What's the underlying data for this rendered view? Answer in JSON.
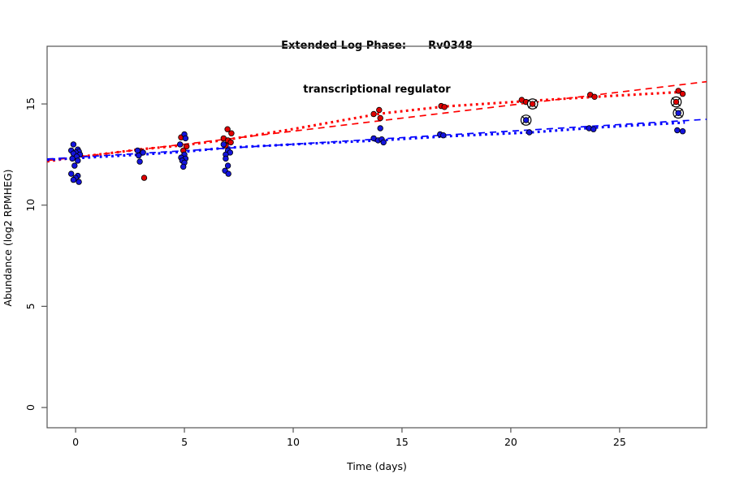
{
  "figure": {
    "title_line1": "Extended Log Phase:      Rv0348",
    "title_line2": "transcriptional regulator",
    "x_axis_title": "Time  (days)",
    "y_axis_title": "Abundance  (log2 RPMHEG)"
  },
  "chart_data": {
    "type": "scatter",
    "title": "Extended Log Phase: Rv0348 transcriptional regulator",
    "xlabel": "Time (days)",
    "ylabel": "Abundance (log2 RPMHEG)",
    "xlim": [
      -1.31,
      29.0
    ],
    "ylim": [
      -1.0,
      17.85
    ],
    "x_ticks": [
      0,
      5,
      10,
      15,
      20,
      25
    ],
    "y_ticks": [
      0,
      5,
      10,
      15
    ],
    "grid": false,
    "legend": "none",
    "colors": {
      "red_points": "#e00000",
      "blue_points": "#1414dd",
      "red_line": "#ff0000",
      "blue_line": "#0000ff",
      "ring": "#000000",
      "axis": "#555555"
    },
    "series": [
      {
        "name": "red-condition-points",
        "type": "scatter",
        "color_key": "red_points",
        "points": [
          [
            3.0,
            12.64
          ],
          [
            3.15,
            11.35
          ],
          [
            4.85,
            13.35
          ],
          [
            5.1,
            12.9
          ],
          [
            4.95,
            12.7
          ],
          [
            6.98,
            13.75
          ],
          [
            7.16,
            13.55
          ],
          [
            6.8,
            13.3
          ],
          [
            7.0,
            13.2
          ],
          [
            7.13,
            13.1
          ],
          [
            6.9,
            12.95
          ],
          [
            13.95,
            14.7
          ],
          [
            13.7,
            14.5
          ],
          [
            14.0,
            14.3
          ],
          [
            16.8,
            14.9
          ],
          [
            16.95,
            14.85
          ],
          [
            20.5,
            15.2
          ],
          [
            20.7,
            15.1
          ],
          [
            23.65,
            15.45
          ],
          [
            23.85,
            15.35
          ],
          [
            27.7,
            15.65
          ],
          [
            27.9,
            15.5
          ]
        ]
      },
      {
        "name": "blue-condition-points",
        "type": "scatter",
        "color_key": "blue_points",
        "points": [
          [
            -0.1,
            13.0
          ],
          [
            0.1,
            12.75
          ],
          [
            -0.2,
            12.7
          ],
          [
            0.15,
            12.65
          ],
          [
            0.0,
            12.6
          ],
          [
            -0.1,
            12.55
          ],
          [
            0.2,
            12.5
          ],
          [
            0.05,
            12.4
          ],
          [
            -0.15,
            12.3
          ],
          [
            0.1,
            12.2
          ],
          [
            -0.05,
            11.95
          ],
          [
            -0.2,
            11.55
          ],
          [
            0.1,
            11.45
          ],
          [
            0.0,
            11.35
          ],
          [
            -0.1,
            11.25
          ],
          [
            0.15,
            11.15
          ],
          [
            2.85,
            12.7
          ],
          [
            3.1,
            12.6
          ],
          [
            2.9,
            12.45
          ],
          [
            2.95,
            12.15
          ],
          [
            5.0,
            13.5
          ],
          [
            5.05,
            13.3
          ],
          [
            4.8,
            13.0
          ],
          [
            5.0,
            12.5
          ],
          [
            4.85,
            12.35
          ],
          [
            5.05,
            12.3
          ],
          [
            4.9,
            12.2
          ],
          [
            5.0,
            12.1
          ],
          [
            4.95,
            11.9
          ],
          [
            6.8,
            13.0
          ],
          [
            7.0,
            12.7
          ],
          [
            7.1,
            12.6
          ],
          [
            6.9,
            12.5
          ],
          [
            6.9,
            12.3
          ],
          [
            7.0,
            11.95
          ],
          [
            6.87,
            11.7
          ],
          [
            7.02,
            11.55
          ],
          [
            14.0,
            13.8
          ],
          [
            13.7,
            13.3
          ],
          [
            13.9,
            13.2
          ],
          [
            14.07,
            13.25
          ],
          [
            14.15,
            13.1
          ],
          [
            16.75,
            13.5
          ],
          [
            16.9,
            13.45
          ],
          [
            20.85,
            13.6
          ],
          [
            23.6,
            13.8
          ],
          [
            23.8,
            13.75
          ],
          [
            27.65,
            13.7
          ],
          [
            27.9,
            13.65
          ]
        ]
      },
      {
        "name": "flagged-red-points",
        "type": "scatter-circled",
        "color_key": "red_points",
        "points": [
          [
            21.0,
            15.0
          ],
          [
            27.6,
            15.1
          ]
        ]
      },
      {
        "name": "flagged-blue-points",
        "type": "scatter-circled",
        "color_key": "blue_points",
        "points": [
          [
            20.7,
            14.2
          ],
          [
            27.7,
            14.55
          ]
        ]
      },
      {
        "name": "red-linear-fit",
        "type": "line",
        "color_key": "red_line",
        "dash": "longdash",
        "points": [
          [
            -1.31,
            12.2
          ],
          [
            29.0,
            16.1
          ]
        ]
      },
      {
        "name": "blue-linear-fit",
        "type": "line",
        "color_key": "blue_line",
        "dash": "longdash",
        "points": [
          [
            -1.31,
            12.28
          ],
          [
            29.0,
            14.24
          ]
        ]
      },
      {
        "name": "red-lowess-fit",
        "type": "line",
        "color_key": "red_line",
        "dash": "dotted",
        "points": [
          [
            -1.31,
            12.16
          ],
          [
            0,
            12.36
          ],
          [
            3,
            12.76
          ],
          [
            5,
            12.96
          ],
          [
            7,
            13.24
          ],
          [
            10,
            13.76
          ],
          [
            14,
            14.52
          ],
          [
            17,
            14.88
          ],
          [
            21,
            15.16
          ],
          [
            24,
            15.36
          ],
          [
            28,
            15.6
          ]
        ]
      },
      {
        "name": "blue-lowess-fit",
        "type": "line",
        "color_key": "blue_line",
        "dash": "dotted",
        "points": [
          [
            -1.31,
            12.24
          ],
          [
            0,
            12.32
          ],
          [
            3,
            12.5
          ],
          [
            5,
            12.64
          ],
          [
            7,
            12.84
          ],
          [
            10,
            13.0
          ],
          [
            14,
            13.2
          ],
          [
            17,
            13.4
          ],
          [
            21,
            13.6
          ],
          [
            24,
            13.84
          ],
          [
            28,
            14.08
          ]
        ]
      }
    ]
  }
}
